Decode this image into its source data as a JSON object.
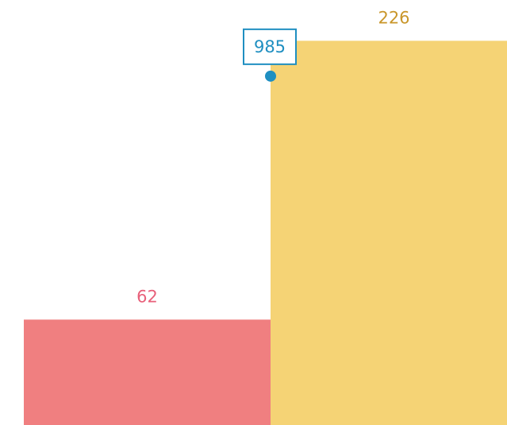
{
  "chart_data": {
    "type": "bar",
    "categories": [
      null,
      null
    ],
    "values": [
      62,
      226
    ],
    "colors": [
      "#f07f80",
      "#f5d375"
    ],
    "label_colors": [
      "#e8607a",
      "#c9962a"
    ],
    "ylim": [
      0,
      250
    ],
    "points": {
      "axis": "y2",
      "values": [
        985
      ],
      "color": "#1f8fc1"
    },
    "y2lim": [
      0,
      1200
    ]
  }
}
